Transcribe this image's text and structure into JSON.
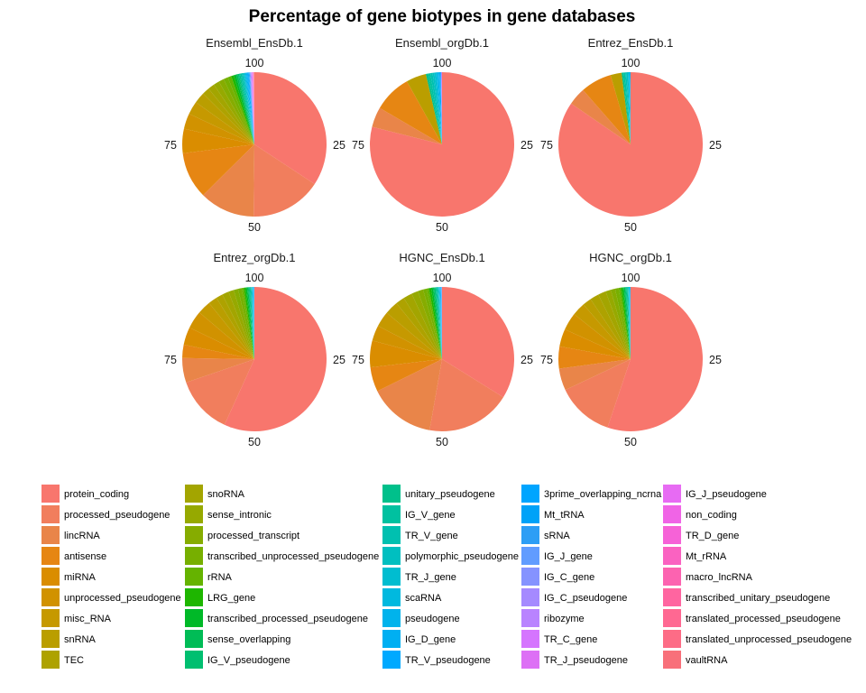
{
  "title": "Percentage of gene biotypes in gene databases",
  "chart_data": {
    "type": "pie",
    "title": "Percentage of gene biotypes in gene databases",
    "axis_ticks": [
      "100",
      "25",
      "50",
      "75"
    ],
    "legend_position": "bottom",
    "categories": [
      "protein_coding",
      "processed_pseudogene",
      "lincRNA",
      "antisense",
      "miRNA",
      "unprocessed_pseudogene",
      "misc_RNA",
      "snRNA",
      "TEC",
      "snoRNA",
      "sense_intronic",
      "processed_transcript",
      "transcribed_unprocessed_pseudogene",
      "rRNA",
      "LRG_gene",
      "transcribed_processed_pseudogene",
      "sense_overlapping",
      "IG_V_pseudogene",
      "unitary_pseudogene",
      "IG_V_gene",
      "TR_V_gene",
      "polymorphic_pseudogene",
      "TR_J_gene",
      "scaRNA",
      "pseudogene",
      "IG_D_gene",
      "TR_V_pseudogene",
      "3prime_overlapping_ncrna",
      "Mt_tRNA",
      "sRNA",
      "IG_J_gene",
      "IG_C_gene",
      "IG_C_pseudogene",
      "ribozyme",
      "TR_C_gene",
      "TR_J_pseudogene",
      "IG_J_pseudogene",
      "non_coding",
      "TR_D_gene",
      "Mt_rRNA",
      "macro_lncRNA",
      "transcribed_unitary_pseudogene",
      "translated_processed_pseudogene",
      "translated_unprocessed_pseudogene",
      "vaultRNA"
    ],
    "colors": [
      "#F8766D",
      "#F17E5D",
      "#E98549",
      "#E68613",
      "#DA8D00",
      "#D19200",
      "#C69900",
      "#BA9E00",
      "#AEA200",
      "#A3A500",
      "#96A900",
      "#86AC00",
      "#77AF00",
      "#65B300",
      "#1EB600",
      "#00B928",
      "#00BC56",
      "#00BF70",
      "#00C08B",
      "#00C1A0",
      "#00C0B0",
      "#00BFC0",
      "#00BDD0",
      "#00B9DF",
      "#00B3EC",
      "#00AFF2",
      "#00A9FF",
      "#00A5FF",
      "#00A2F8",
      "#2D9EF5",
      "#619CFF",
      "#8593FF",
      "#A58AFF",
      "#B983FF",
      "#D575FE",
      "#DD70F5",
      "#E76BF3",
      "#F064E6",
      "#F662D7",
      "#FA62C1",
      "#FC63B0",
      "#FF65A0",
      "#FF6892",
      "#FD6C86",
      "#F8707A"
    ],
    "panels": [
      {
        "label": "Ensembl_EnsDb.1",
        "values": [
          34.5,
          16,
          12.5,
          10.5,
          5.5,
          3.5,
          3,
          2.5,
          1.6,
          1.5,
          1.3,
          1.2,
          1,
          0.8,
          0.6,
          0.5,
          0.4,
          0.3,
          0.3,
          0.3,
          0.3,
          0.2,
          0.2,
          0.2,
          0.2,
          0.2,
          0.2,
          0.1,
          0.1,
          0.1,
          0.1,
          0.1,
          0.1,
          0.1,
          0.1,
          0.1,
          0.05,
          0.05,
          0.05,
          0.05,
          0.05,
          0.05,
          0.05,
          0.05,
          0.05
        ]
      },
      {
        "label": "Ensembl_orgDb.1",
        "values": [
          79,
          0,
          4.5,
          8.5,
          0,
          0,
          0,
          4.5,
          0,
          0,
          0,
          0,
          0,
          0,
          0,
          0,
          0,
          0,
          0.5,
          0.5,
          0.5,
          0.4,
          0.4,
          0.3,
          0.3,
          0.2,
          0.2,
          0,
          0,
          0,
          0.1,
          0.1,
          0,
          0,
          0.1,
          0,
          0,
          0,
          0,
          0,
          0,
          0,
          0,
          0,
          0
        ]
      },
      {
        "label": "Entrez_EnsDb.1",
        "values": [
          85,
          0,
          4,
          7,
          0,
          0,
          0,
          2.5,
          0,
          0,
          0,
          0,
          0,
          0,
          0,
          0,
          0,
          0,
          0.4,
          0.4,
          0.3,
          0.3,
          0.2,
          0.2,
          0.1,
          0.1,
          0,
          0,
          0,
          0,
          0,
          0,
          0,
          0,
          0,
          0,
          0,
          0,
          0,
          0,
          0,
          0,
          0,
          0,
          0
        ]
      },
      {
        "label": "Entrez_orgDb.1",
        "values": [
          57,
          13,
          5.5,
          3,
          4,
          4,
          3,
          2,
          1.5,
          1.5,
          1.2,
          1,
          0.8,
          0.5,
          0.4,
          0.3,
          0.3,
          0.2,
          0.2,
          0.2,
          0.1,
          0.1,
          0.1,
          0.1,
          0.1,
          0.05,
          0.05,
          0.05,
          0.05,
          0.05,
          0,
          0,
          0,
          0,
          0,
          0,
          0,
          0,
          0,
          0,
          0,
          0,
          0,
          0,
          0
        ]
      },
      {
        "label": "HGNC_EnsDb.1",
        "values": [
          34,
          19,
          15,
          5.5,
          6,
          3.5,
          3.5,
          3,
          2,
          2,
          1.5,
          1.2,
          0.8,
          0.5,
          0.5,
          0.4,
          0.3,
          0.3,
          0.2,
          0.2,
          0.2,
          0.1,
          0.1,
          0.1,
          0.1,
          0.1,
          0.1,
          0.05,
          0.05,
          0.05,
          0.05,
          0.05,
          0,
          0,
          0,
          0,
          0,
          0,
          0,
          0,
          0,
          0,
          0,
          0,
          0
        ]
      },
      {
        "label": "HGNC_orgDb.1",
        "values": [
          56,
          13,
          5,
          5,
          4,
          4,
          3,
          2,
          2,
          1.8,
          1.2,
          1,
          0.8,
          0.5,
          0.4,
          0.3,
          0.3,
          0.2,
          0.2,
          0.2,
          0.1,
          0.1,
          0.1,
          0.1,
          0.1,
          0.05,
          0.05,
          0,
          0,
          0,
          0,
          0,
          0,
          0,
          0,
          0,
          0,
          0,
          0,
          0,
          0,
          0,
          0,
          0,
          0
        ]
      }
    ]
  }
}
